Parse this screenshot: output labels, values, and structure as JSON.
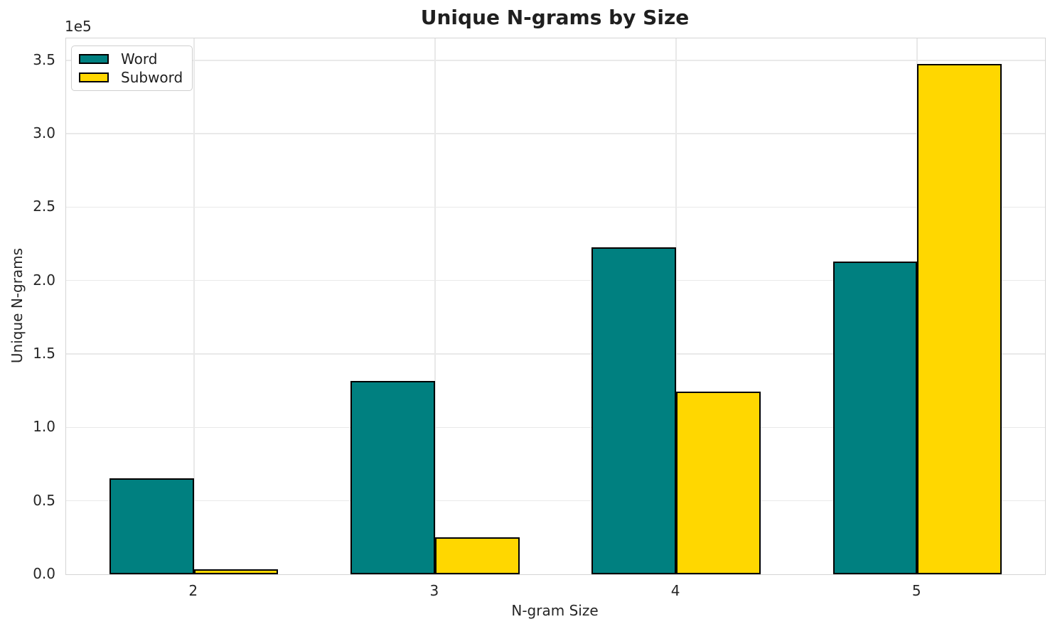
{
  "chart_data": {
    "type": "bar",
    "title": "Unique N-grams by Size",
    "xlabel": "N-gram Size",
    "ylabel": "Unique N-grams",
    "y_offset_label": "1e5",
    "categories": [
      2,
      3,
      4,
      5
    ],
    "xtick_labels": [
      "2",
      "3",
      "4",
      "5"
    ],
    "series": [
      {
        "name": "Word",
        "color": "#008080",
        "values": [
          65300,
          131400,
          222400,
          213100
        ]
      },
      {
        "name": "Subword",
        "color": "#FFD700",
        "values": [
          3600,
          25100,
          124500,
          347500
        ]
      }
    ],
    "bar_edge_color": "#000000",
    "bar_width_data": 0.35,
    "xlim": [
      1.47,
      5.53
    ],
    "ylim": [
      0,
      364900
    ],
    "yticks": [
      0,
      50000,
      100000,
      150000,
      200000,
      250000,
      300000,
      350000
    ],
    "ytick_labels": [
      "0.0",
      "0.5",
      "1.0",
      "1.5",
      "2.0",
      "2.5",
      "3.0",
      "3.5"
    ],
    "grid": true,
    "legend_position": "upper left",
    "colors": {
      "grid": "#e9e9e9",
      "spine": "#d5d5d5",
      "text": "#262626",
      "title": "#1f1f1f",
      "background": "#ffffff"
    }
  }
}
